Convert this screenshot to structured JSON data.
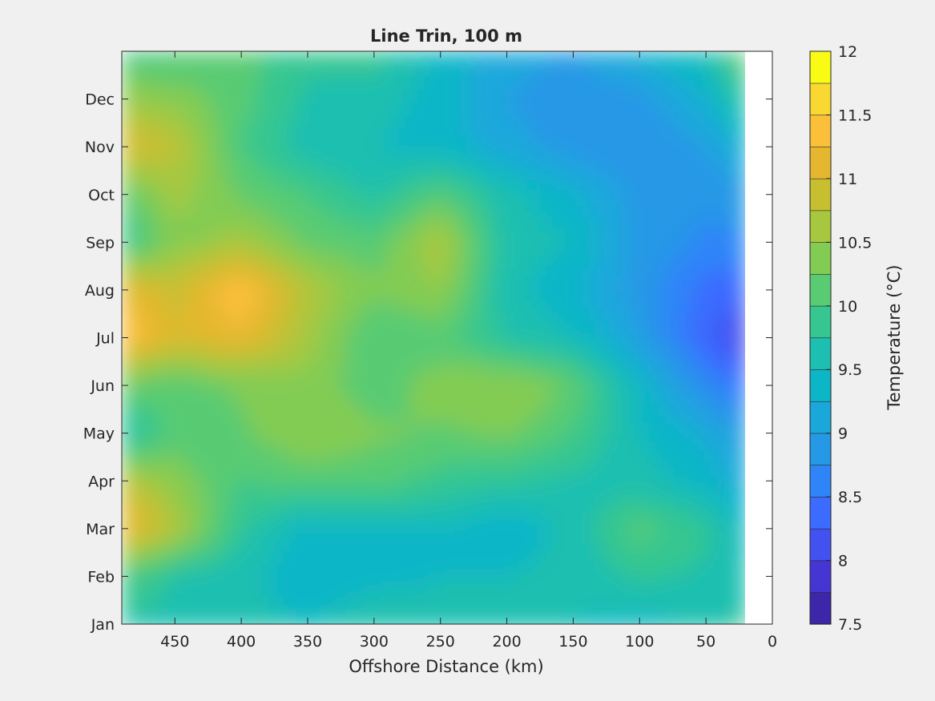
{
  "chart_data": {
    "type": "heatmap",
    "subtype": "filled-contour",
    "title": "Line Trin, 100 m",
    "xlabel": "Offshore Distance (km)",
    "ylabel": "",
    "x_direction": "reversed",
    "xlim": [
      490,
      0
    ],
    "xticks": [
      450,
      400,
      350,
      300,
      250,
      200,
      150,
      100,
      50,
      0
    ],
    "xtick_labels": [
      "450",
      "400",
      "350",
      "300",
      "250",
      "200",
      "150",
      "100",
      "50",
      "0"
    ],
    "y_categories": [
      "Jan",
      "Feb",
      "Mar",
      "Apr",
      "May",
      "Jun",
      "Jul",
      "Aug",
      "Sep",
      "Oct",
      "Nov",
      "Dec"
    ],
    "ylim": [
      1,
      13
    ],
    "data_x_coverage": [
      490,
      20
    ],
    "x": [
      490,
      450,
      400,
      350,
      300,
      250,
      200,
      150,
      100,
      50,
      20
    ],
    "z": [
      [
        9.7,
        9.7,
        9.6,
        9.5,
        9.7,
        9.6,
        9.5,
        9.5,
        9.4,
        9.6,
        9.9
      ],
      [
        10.0,
        9.7,
        9.6,
        9.3,
        9.4,
        9.5,
        9.5,
        9.6,
        9.8,
        9.7,
        9.5
      ],
      [
        11.3,
        10.7,
        9.8,
        9.4,
        9.5,
        9.5,
        9.3,
        9.6,
        10.1,
        9.8,
        9.4
      ],
      [
        10.8,
        10.4,
        10.0,
        10.1,
        10.1,
        9.9,
        9.8,
        9.7,
        9.6,
        9.4,
        9.1
      ],
      [
        9.6,
        10.1,
        10.2,
        10.5,
        10.3,
        10.2,
        10.3,
        10.0,
        9.5,
        9.2,
        8.9
      ],
      [
        10.2,
        10.1,
        10.3,
        10.4,
        10.1,
        10.4,
        10.5,
        10.2,
        9.4,
        8.7,
        8.4
      ],
      [
        11.5,
        11.0,
        11.2,
        10.6,
        10.0,
        10.1,
        9.7,
        9.5,
        9.0,
        8.3,
        8.0
      ],
      [
        11.2,
        10.9,
        11.5,
        10.7,
        10.3,
        10.5,
        9.6,
        9.3,
        8.9,
        8.4,
        8.3
      ],
      [
        9.8,
        10.4,
        10.6,
        10.2,
        10.1,
        10.7,
        9.6,
        9.5,
        8.9,
        8.7,
        8.7
      ],
      [
        10.1,
        10.6,
        10.2,
        10.0,
        9.7,
        10.1,
        9.6,
        9.3,
        8.9,
        8.8,
        8.9
      ],
      [
        11.1,
        10.8,
        10.0,
        9.6,
        9.5,
        9.4,
        9.1,
        8.9,
        8.8,
        9.0,
        9.3
      ],
      [
        10.5,
        10.4,
        10.1,
        9.7,
        9.6,
        9.4,
        9.0,
        8.8,
        8.9,
        9.3,
        9.8
      ],
      [
        9.9,
        10.0,
        10.1,
        9.8,
        9.9,
        9.4,
        9.1,
        9.0,
        9.3,
        9.6,
        10.3
      ]
    ],
    "colorbar": {
      "label": "Temperature (°C)",
      "levels": [
        7.5,
        7.75,
        8,
        8.25,
        8.5,
        8.75,
        9,
        9.25,
        9.5,
        9.75,
        10,
        10.25,
        10.5,
        10.75,
        11,
        11.25,
        11.5,
        11.75,
        12
      ],
      "tick_values": [
        7.5,
        8,
        8.5,
        9,
        9.5,
        10,
        10.5,
        11,
        11.5,
        12
      ],
      "tick_labels": [
        "7.5",
        "8",
        "8.5",
        "9",
        "9.5",
        "10",
        "10.5",
        "11",
        "11.5",
        "12"
      ],
      "colors": [
        "#3e26a8",
        "#4535d3",
        "#4351f1",
        "#3b6bff",
        "#2f85f8",
        "#2598e6",
        "#1aa8db",
        "#0db6c7",
        "#1dbfb0",
        "#35c691",
        "#59cb72",
        "#83cc53",
        "#a8c740",
        "#c8bf30",
        "#e4b72f",
        "#fbbf3a",
        "#f8d831",
        "#f9fb15"
      ]
    },
    "grid": false,
    "legend": "none"
  }
}
